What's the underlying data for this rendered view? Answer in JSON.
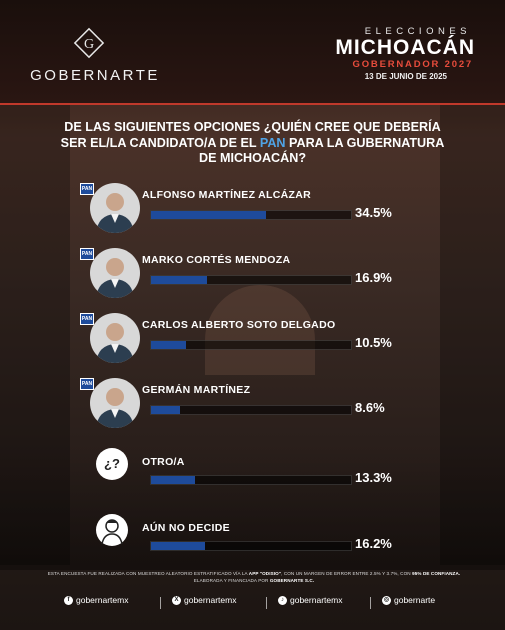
{
  "header": {
    "brand": "GOBERNARTE",
    "logo_letter": "G",
    "elections": "ELECCIONES",
    "state": "MICHOACÁN",
    "office": "GOBERNADOR 2027",
    "date": "13 DE JUNIO DE 2025"
  },
  "question": {
    "part1": "DE LAS SIGUIENTES OPCIONES ¿QUIÉN CREE QUE DEBERÍA SER EL/LA CANDIDATO/A DE EL",
    "highlight": "PAN",
    "part2": "PARA LA GUBERNATURA DE MICHOACÁN?"
  },
  "colors": {
    "bar": "#1e4b9b",
    "accent": "#4fa3e6",
    "office": "#e74c3c"
  },
  "chart_data": {
    "type": "bar",
    "orientation": "horizontal",
    "title": "DE LAS SIGUIENTES OPCIONES ¿QUIÉN CREE QUE DEBERÍA SER EL/LA CANDIDATO/A DE EL PAN PARA LA GUBERNATURA DE MICHOACÁN?",
    "categories": [
      "ALFONSO MARTÍNEZ ALCÁZAR",
      "MARKO CORTÉS MENDOZA",
      "CARLOS ALBERTO SOTO DELGADO",
      "GERMÁN MARTÍNEZ",
      "OTRO/A",
      "AÚN NO DECIDE"
    ],
    "values": [
      34.5,
      16.9,
      10.5,
      8.6,
      13.3,
      16.2
    ],
    "labels": [
      "34.5%",
      "16.9%",
      "10.5%",
      "8.6%",
      "13.3%",
      "16.2%"
    ],
    "xlim": [
      0,
      60
    ],
    "icons": [
      "candidate-photo",
      "candidate-photo",
      "candidate-photo",
      "candidate-photo",
      "question-icon",
      "undecided-person-icon"
    ],
    "pan_badge": [
      "PAN",
      "PAN",
      "PAN",
      "PAN",
      "",
      ""
    ]
  },
  "footer": {
    "note_part1": "ESTA ENCUESTA FUE REALIZADA CON MUESTREO ALEATORIO ESTRATIFICADO VÍA LA",
    "note_app": "APP \"ODISIO\"",
    "note_part2": ", CON UN MARGEN DE ERROR ENTRE 2.5% Y 3.7%, CON",
    "note_conf": "95% DE CONFIANZA.",
    "note_part3": "ELABORADA Y FINANCIADA POR",
    "note_org": "GOBERNARTE S.C.",
    "socials": [
      {
        "icon": "facebook-icon",
        "glyph": "f",
        "handle": "gobernartemx"
      },
      {
        "icon": "x-icon",
        "glyph": "X",
        "handle": "gobernartemx"
      },
      {
        "icon": "tiktok-icon",
        "glyph": "♪",
        "handle": "gobernartemx"
      },
      {
        "icon": "instagram-icon",
        "glyph": "◎",
        "handle": "gobernarte"
      }
    ]
  }
}
